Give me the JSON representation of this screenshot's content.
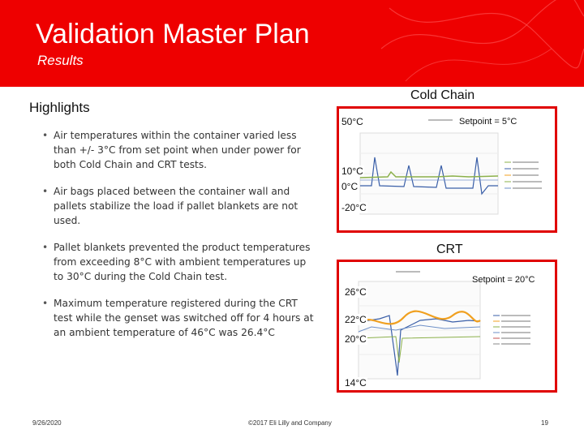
{
  "header": {
    "title": "Validation Master Plan",
    "subtitle": "Results"
  },
  "highlights": {
    "heading": "Highlights",
    "bullets": [
      "Air temperatures within the container varied less than +/- 3°C from set point when under power for both Cold Chain and CRT tests.",
      "Air bags placed between the container wall and pallets stabilize the load if pallet blankets are not used.",
      "Pallet blankets prevented the product temperatures from exceeding 8°C with ambient temperatures up to 30°C during the Cold Chain test.",
      "Maximum temperature registered during the CRT test while the genset was switched off for 4 hours at an ambient temperature of 46°C was 26.4°C"
    ]
  },
  "cold_chain": {
    "caption": "Cold Chain",
    "setpoint": "Setpoint = 5°C",
    "label_top": "50°C",
    "label_mid1": "10°C",
    "label_mid2": "0°C",
    "label_bottom": "-20°C"
  },
  "crt": {
    "caption": "CRT",
    "setpoint": "Setpoint = 20°C",
    "label_top": "26°C",
    "label_mid1": "22°C",
    "label_mid2": "20°C",
    "label_bottom": "14°C"
  },
  "footer": {
    "date": "9/26/2020",
    "copyright": "©2017 Eli Lilly and Company",
    "page": "19"
  },
  "colors": {
    "banner": "#ee0000",
    "chart_border": "#e00000",
    "trace_blue": "#3a5fa8",
    "trace_green": "#8bb04a",
    "trace_orange": "#f0a020"
  }
}
